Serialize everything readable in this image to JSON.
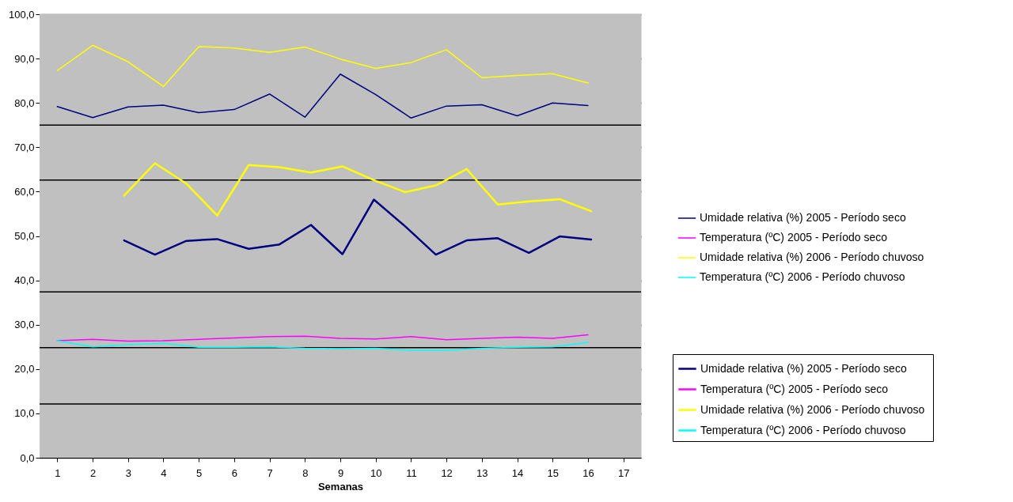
{
  "chart_data": {
    "type": "line",
    "xlabel": "Semanas",
    "x": [
      1,
      2,
      3,
      4,
      5,
      6,
      7,
      8,
      9,
      10,
      11,
      12,
      13,
      14,
      15,
      16
    ],
    "xlim": [
      0.5,
      17.5
    ],
    "xticks": [
      1,
      2,
      3,
      4,
      5,
      6,
      7,
      8,
      9,
      10,
      11,
      12,
      13,
      14,
      15,
      16,
      17
    ],
    "ylim": [
      0,
      100
    ],
    "yticks": [
      {
        "value": 0,
        "label": "0,0"
      },
      {
        "value": 10,
        "label": "10,0"
      },
      {
        "value": 20,
        "label": "20,0"
      },
      {
        "value": 30,
        "label": "30,0"
      },
      {
        "value": 40,
        "label": "40,0"
      },
      {
        "value": 50,
        "label": "50,0"
      },
      {
        "value": 60,
        "label": "60,0"
      },
      {
        "value": 70,
        "label": "70,0"
      },
      {
        "value": 80,
        "label": "80,0"
      },
      {
        "value": 90,
        "label": "90,0"
      },
      {
        "value": 100,
        "label": "100,0"
      }
    ],
    "grid": "y",
    "legend": "right",
    "marker": "none",
    "line_style": "solid",
    "ref_lines": [
      {
        "axis": "y",
        "value": 12.1,
        "color": "#000000"
      },
      {
        "axis": "y",
        "value": 24.8,
        "color": "#000000"
      },
      {
        "axis": "y",
        "value": 37.4,
        "color": "#000000"
      },
      {
        "axis": "y",
        "value": 62.6,
        "color": "#000000"
      },
      {
        "axis": "y",
        "value": 75.0,
        "color": "#000000"
      }
    ],
    "series": [
      {
        "name": "Umidade relativa (%) 2005 - Período seco",
        "color": "#000080",
        "values": [
          79.2,
          76.7,
          79.1,
          79.5,
          77.8,
          78.5,
          82.0,
          76.8,
          86.5,
          81.9,
          76.6,
          79.3,
          79.6,
          77.1,
          80.0,
          79.4
        ]
      },
      {
        "name": "Temperatura (ºC) 2005 - Período seco",
        "color": "#ff00ff",
        "values": [
          26.4,
          26.7,
          26.3,
          26.4,
          26.7,
          27.0,
          27.3,
          27.4,
          26.9,
          26.8,
          27.3,
          26.6,
          26.9,
          27.2,
          26.9,
          27.7
        ]
      },
      {
        "name": "Umidade relativa (%)  2006 - Período chuvoso",
        "color": "#ffff00",
        "values": [
          87.3,
          93.0,
          89.3,
          83.7,
          92.7,
          92.4,
          91.4,
          92.6,
          89.9,
          87.8,
          89.1,
          92.0,
          85.7,
          86.2,
          86.6,
          84.5
        ]
      },
      {
        "name": "Temperatura (ºC) 2006 - Período chuvoso",
        "color": "#00ffff",
        "values": [
          26.4,
          25.0,
          25.5,
          25.8,
          24.9,
          24.9,
          25.0,
          24.7,
          24.6,
          24.7,
          24.2,
          24.2,
          24.7,
          24.9,
          25.0,
          26.0
        ]
      },
      {
        "name": "Umidade relativa (%) 2005 - Período seco",
        "color": "#000080",
        "x": [
          2.89,
          3.76,
          4.65,
          5.52,
          6.41,
          7.28,
          8.17,
          9.06,
          9.95,
          10.83,
          11.7,
          12.57,
          13.45,
          14.33,
          15.2,
          16.09
        ],
        "values": [
          49.0,
          45.8,
          48.9,
          49.3,
          47.1,
          48.1,
          52.5,
          45.9,
          58.2,
          52.2,
          45.8,
          49.0,
          49.5,
          46.2,
          49.9,
          49.2
        ]
      },
      {
        "name": "Temperatura (ºC) 2005 - Período seco",
        "color": "#ff00ff",
        "values": [
          null,
          null,
          null,
          null,
          null,
          null,
          null,
          null,
          null,
          null,
          null,
          null,
          null,
          null,
          null,
          null
        ]
      },
      {
        "name": "Umidade relativa (%)  2006 - Período chuvoso",
        "color": "#ffff00",
        "x": [
          2.89,
          3.76,
          4.65,
          5.52,
          6.41,
          7.28,
          8.17,
          9.06,
          9.95,
          10.83,
          11.7,
          12.57,
          13.45,
          14.33,
          15.2,
          16.09
        ],
        "values": [
          59.1,
          66.4,
          61.8,
          54.6,
          66.0,
          65.5,
          64.3,
          65.7,
          62.6,
          59.9,
          61.4,
          65.1,
          57.1,
          57.8,
          58.3,
          55.6
        ]
      },
      {
        "name": "Temperatura (ºC) 2006 - Período chuvoso",
        "color": "#00ffff",
        "values": [
          null,
          null,
          null,
          null,
          null,
          null,
          null,
          null,
          null,
          null,
          null,
          null,
          null,
          null,
          null,
          null
        ]
      }
    ]
  }
}
